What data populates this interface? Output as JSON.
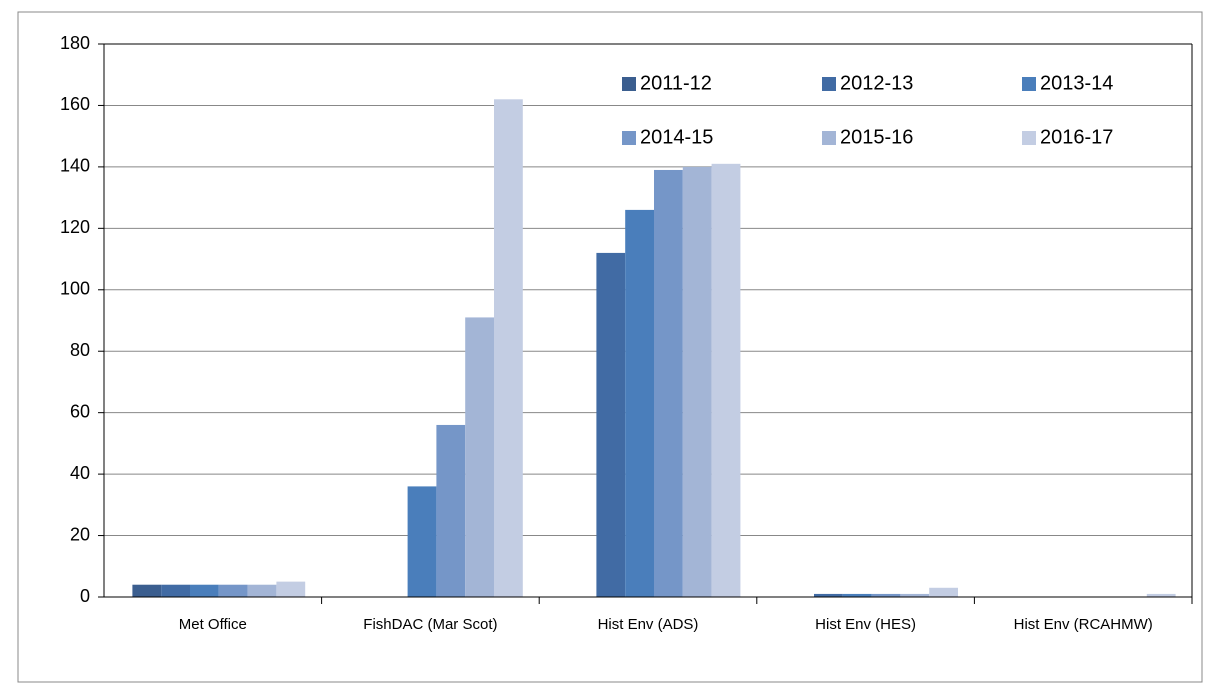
{
  "chart_data": {
    "type": "bar",
    "categories": [
      "Met Office",
      "FishDAC (Mar Scot)",
      "Hist Env (ADS)",
      "Hist Env (HES)",
      "Hist Env (RCAHMW)"
    ],
    "series": [
      {
        "name": "2011-12",
        "color": "#3b5e8f",
        "values": [
          4,
          0,
          0,
          0,
          0
        ]
      },
      {
        "name": "2012-13",
        "color": "#416ba4",
        "values": [
          4,
          0,
          112,
          1,
          0
        ]
      },
      {
        "name": "2013-14",
        "color": "#4a7ebb",
        "values": [
          4,
          36,
          126,
          1,
          0
        ]
      },
      {
        "name": "2014-15",
        "color": "#7596c8",
        "values": [
          4,
          56,
          139,
          1,
          0
        ]
      },
      {
        "name": "2015-16",
        "color": "#a3b5d6",
        "values": [
          4,
          91,
          140,
          1,
          0
        ]
      },
      {
        "name": "2016-17",
        "color": "#c3cde3",
        "values": [
          5,
          162,
          141,
          3,
          1
        ]
      }
    ],
    "ylim": [
      0,
      180
    ],
    "yticks": [
      0,
      20,
      40,
      60,
      80,
      100,
      120,
      140,
      160,
      180
    ],
    "grid": true
  }
}
